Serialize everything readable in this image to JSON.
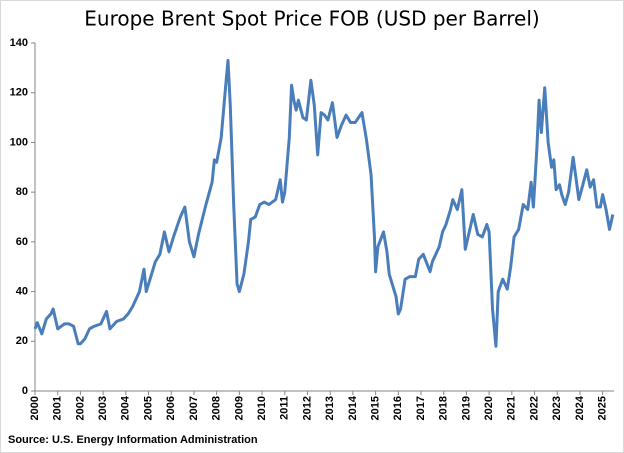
{
  "chart_data": {
    "type": "line",
    "title": "Europe Brent Spot Price FOB (USD per Barrel)",
    "source": "Source: U.S. Energy Information Administration",
    "x": [
      2000.0,
      2000.1,
      2000.3,
      2000.5,
      2000.7,
      2000.8,
      2001.0,
      2001.3,
      2001.5,
      2001.7,
      2001.9,
      2002.0,
      2002.2,
      2002.4,
      2002.6,
      2002.9,
      2003.0,
      2003.15,
      2003.3,
      2003.6,
      2003.9,
      2004.1,
      2004.3,
      2004.6,
      2004.8,
      2004.9,
      2005.1,
      2005.3,
      2005.5,
      2005.7,
      2005.9,
      2006.1,
      2006.4,
      2006.6,
      2006.8,
      2007.0,
      2007.2,
      2007.5,
      2007.8,
      2007.9,
      2008.0,
      2008.2,
      2008.4,
      2008.5,
      2008.6,
      2008.75,
      2008.9,
      2009.0,
      2009.2,
      2009.4,
      2009.5,
      2009.7,
      2009.9,
      2010.1,
      2010.3,
      2010.45,
      2010.6,
      2010.8,
      2010.9,
      2011.0,
      2011.2,
      2011.3,
      2011.4,
      2011.5,
      2011.6,
      2011.8,
      2011.95,
      2012.15,
      2012.3,
      2012.45,
      2012.6,
      2012.75,
      2012.9,
      2013.1,
      2013.3,
      2013.5,
      2013.7,
      2013.9,
      2014.1,
      2014.4,
      2014.6,
      2014.8,
      2014.95,
      2015.0,
      2015.1,
      2015.35,
      2015.5,
      2015.6,
      2015.9,
      2016.0,
      2016.1,
      2016.3,
      2016.5,
      2016.75,
      2016.9,
      2017.1,
      2017.4,
      2017.5,
      2017.8,
      2017.95,
      2018.1,
      2018.3,
      2018.4,
      2018.6,
      2018.8,
      2018.95,
      2019.1,
      2019.3,
      2019.5,
      2019.7,
      2019.9,
      2020.0,
      2020.15,
      2020.3,
      2020.4,
      2020.6,
      2020.8,
      2020.95,
      2021.1,
      2021.3,
      2021.5,
      2021.7,
      2021.85,
      2021.95,
      2022.1,
      2022.2,
      2022.3,
      2022.45,
      2022.6,
      2022.75,
      2022.85,
      2022.95,
      2023.1,
      2023.2,
      2023.35,
      2023.5,
      2023.7,
      2023.85,
      2023.95,
      2024.1,
      2024.3,
      2024.45,
      2024.6,
      2024.75,
      2024.9,
      2025.0,
      2025.15,
      2025.3,
      2025.45
    ],
    "series": [
      {
        "color": "#4a7ebb",
        "values": [
          25,
          27.5,
          23,
          29,
          31,
          33,
          25,
          27,
          27,
          26,
          19,
          19,
          21,
          25,
          26,
          27,
          29,
          32,
          25,
          28,
          29,
          31,
          34,
          40,
          49,
          40,
          46,
          52,
          55,
          64,
          56,
          62,
          70,
          74,
          60,
          54,
          63,
          74,
          84,
          93,
          92,
          102,
          123,
          133,
          115,
          75,
          43,
          40,
          47,
          60,
          69,
          70,
          75,
          76,
          75,
          76,
          77,
          85,
          76,
          80,
          102,
          123,
          117,
          113,
          117,
          110,
          109,
          125,
          115,
          95,
          112,
          111,
          109,
          116,
          102,
          107,
          111,
          108,
          108,
          112,
          101,
          87,
          62,
          48,
          58,
          64,
          56,
          47,
          38,
          31,
          33,
          45,
          46,
          46,
          53,
          55,
          48,
          52,
          58,
          64,
          67,
          73,
          77,
          73,
          81,
          57,
          63,
          71,
          63,
          62,
          67,
          64,
          33,
          18,
          40,
          45,
          41,
          50,
          62,
          65,
          75,
          73,
          84,
          74,
          97,
          117,
          104,
          122,
          100,
          90,
          93,
          81,
          83,
          79,
          75,
          80,
          94,
          84,
          77,
          82,
          89,
          82,
          85,
          74,
          74,
          79,
          73,
          65,
          71
        ]
      }
    ],
    "xlim": [
      2000,
      2025.5
    ],
    "xticks": [
      2000,
      2001,
      2002,
      2003,
      2004,
      2005,
      2006,
      2007,
      2008,
      2009,
      2010,
      2011,
      2012,
      2013,
      2014,
      2015,
      2016,
      2017,
      2018,
      2019,
      2020,
      2021,
      2022,
      2023,
      2024,
      2025
    ],
    "ylim": [
      0,
      140
    ],
    "yticks": [
      0,
      20,
      40,
      60,
      80,
      100,
      120,
      140
    ],
    "grid": false
  }
}
